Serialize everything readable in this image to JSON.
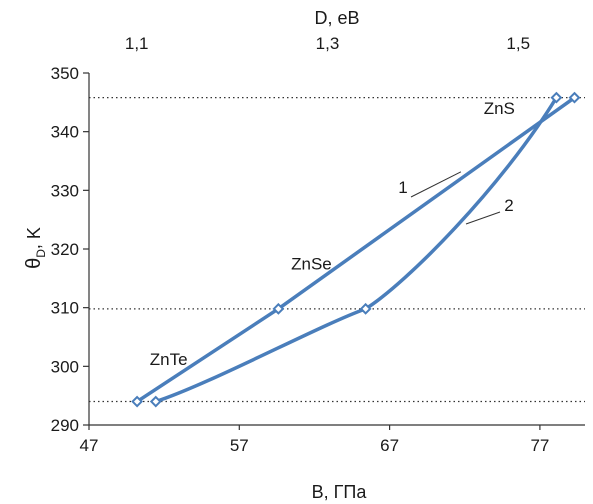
{
  "chart_data": {
    "type": "line",
    "title": "",
    "xlabel": "B, ГПа",
    "x2label": "D, eB",
    "ylabel_main": "θ",
    "ylabel_sub": "D",
    "ylabel_unit": ", K",
    "xlim": [
      47,
      80
    ],
    "ylim": [
      290,
      350
    ],
    "x2lim": [
      1.05,
      1.57
    ],
    "xticks": [
      47,
      57,
      67,
      77
    ],
    "xtick_labels": [
      "47",
      "57",
      "67",
      "77"
    ],
    "x2ticks": [
      1.1,
      1.3,
      1.5
    ],
    "x2tick_labels": [
      "1,1",
      "1,3",
      "1,5"
    ],
    "yticks": [
      290,
      300,
      310,
      320,
      330,
      340,
      350
    ],
    "ytick_labels": [
      "290",
      "300",
      "310",
      "320",
      "330",
      "340",
      "350"
    ],
    "grid": false,
    "series_color": "#4a7ebb",
    "series": [
      {
        "name": "1",
        "axis": "bottom",
        "x": [
          50.2,
          59.6,
          79.3
        ],
        "y": [
          294,
          309.8,
          345.8
        ]
      },
      {
        "name": "2",
        "axis": "top",
        "x": [
          1.12,
          1.34,
          1.54
        ],
        "y": [
          294,
          309.8,
          345.8
        ]
      }
    ],
    "point_labels": [
      {
        "text": "ZnTe",
        "x": 52.3,
        "y": 300.2
      },
      {
        "text": "ZnSe",
        "x": 61.8,
        "y": 316.5
      },
      {
        "text": "ZnS",
        "x": 74.3,
        "y": 343
      }
    ],
    "reference_lines": [
      294,
      309.8,
      345.8
    ]
  }
}
